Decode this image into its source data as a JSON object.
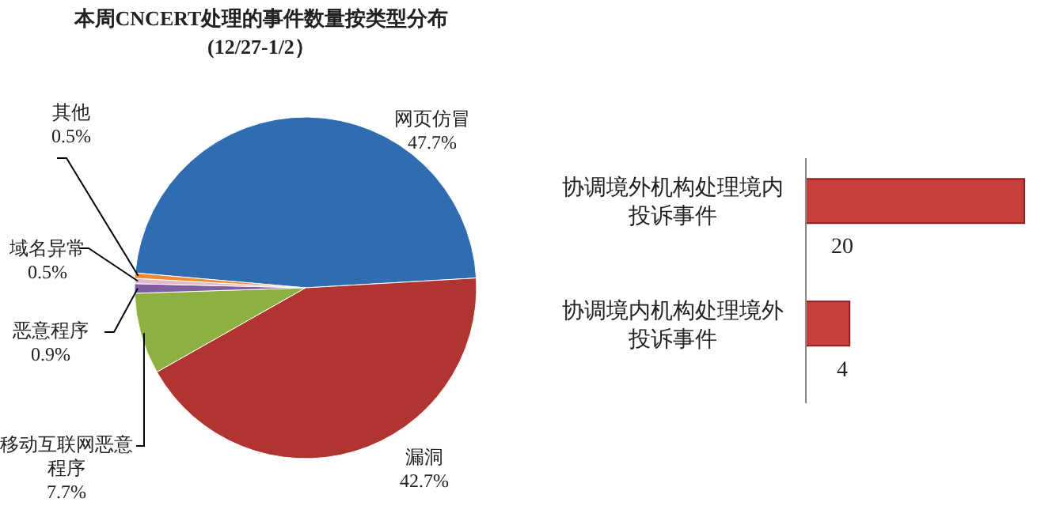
{
  "chart_data": [
    {
      "type": "pie",
      "title": "本周CNCERT处理的事件数量按类型分布",
      "subtitle": "(12/27-1/2）",
      "categories": [
        "网页仿冒",
        "漏洞",
        "移动互联网恶意程序",
        "恶意程序",
        "域名异常",
        "其他"
      ],
      "values": [
        47.7,
        42.7,
        7.7,
        0.9,
        0.5,
        0.5
      ],
      "colors": [
        "#2f6db0",
        "#b03530",
        "#8db040",
        "#7f5fa0",
        "#e6b9c8",
        "#f08a30"
      ],
      "value_labels": [
        "47.7%",
        "42.7%",
        "7.7%",
        "0.9%",
        "0.5%",
        "0.5%"
      ]
    },
    {
      "type": "bar",
      "orientation": "horizontal",
      "categories": [
        "协调境外机构处理境内投诉事件",
        "协调境内机构处理境外投诉事件"
      ],
      "values": [
        20,
        4
      ],
      "color": "#c8403c",
      "data_labels": true
    }
  ]
}
